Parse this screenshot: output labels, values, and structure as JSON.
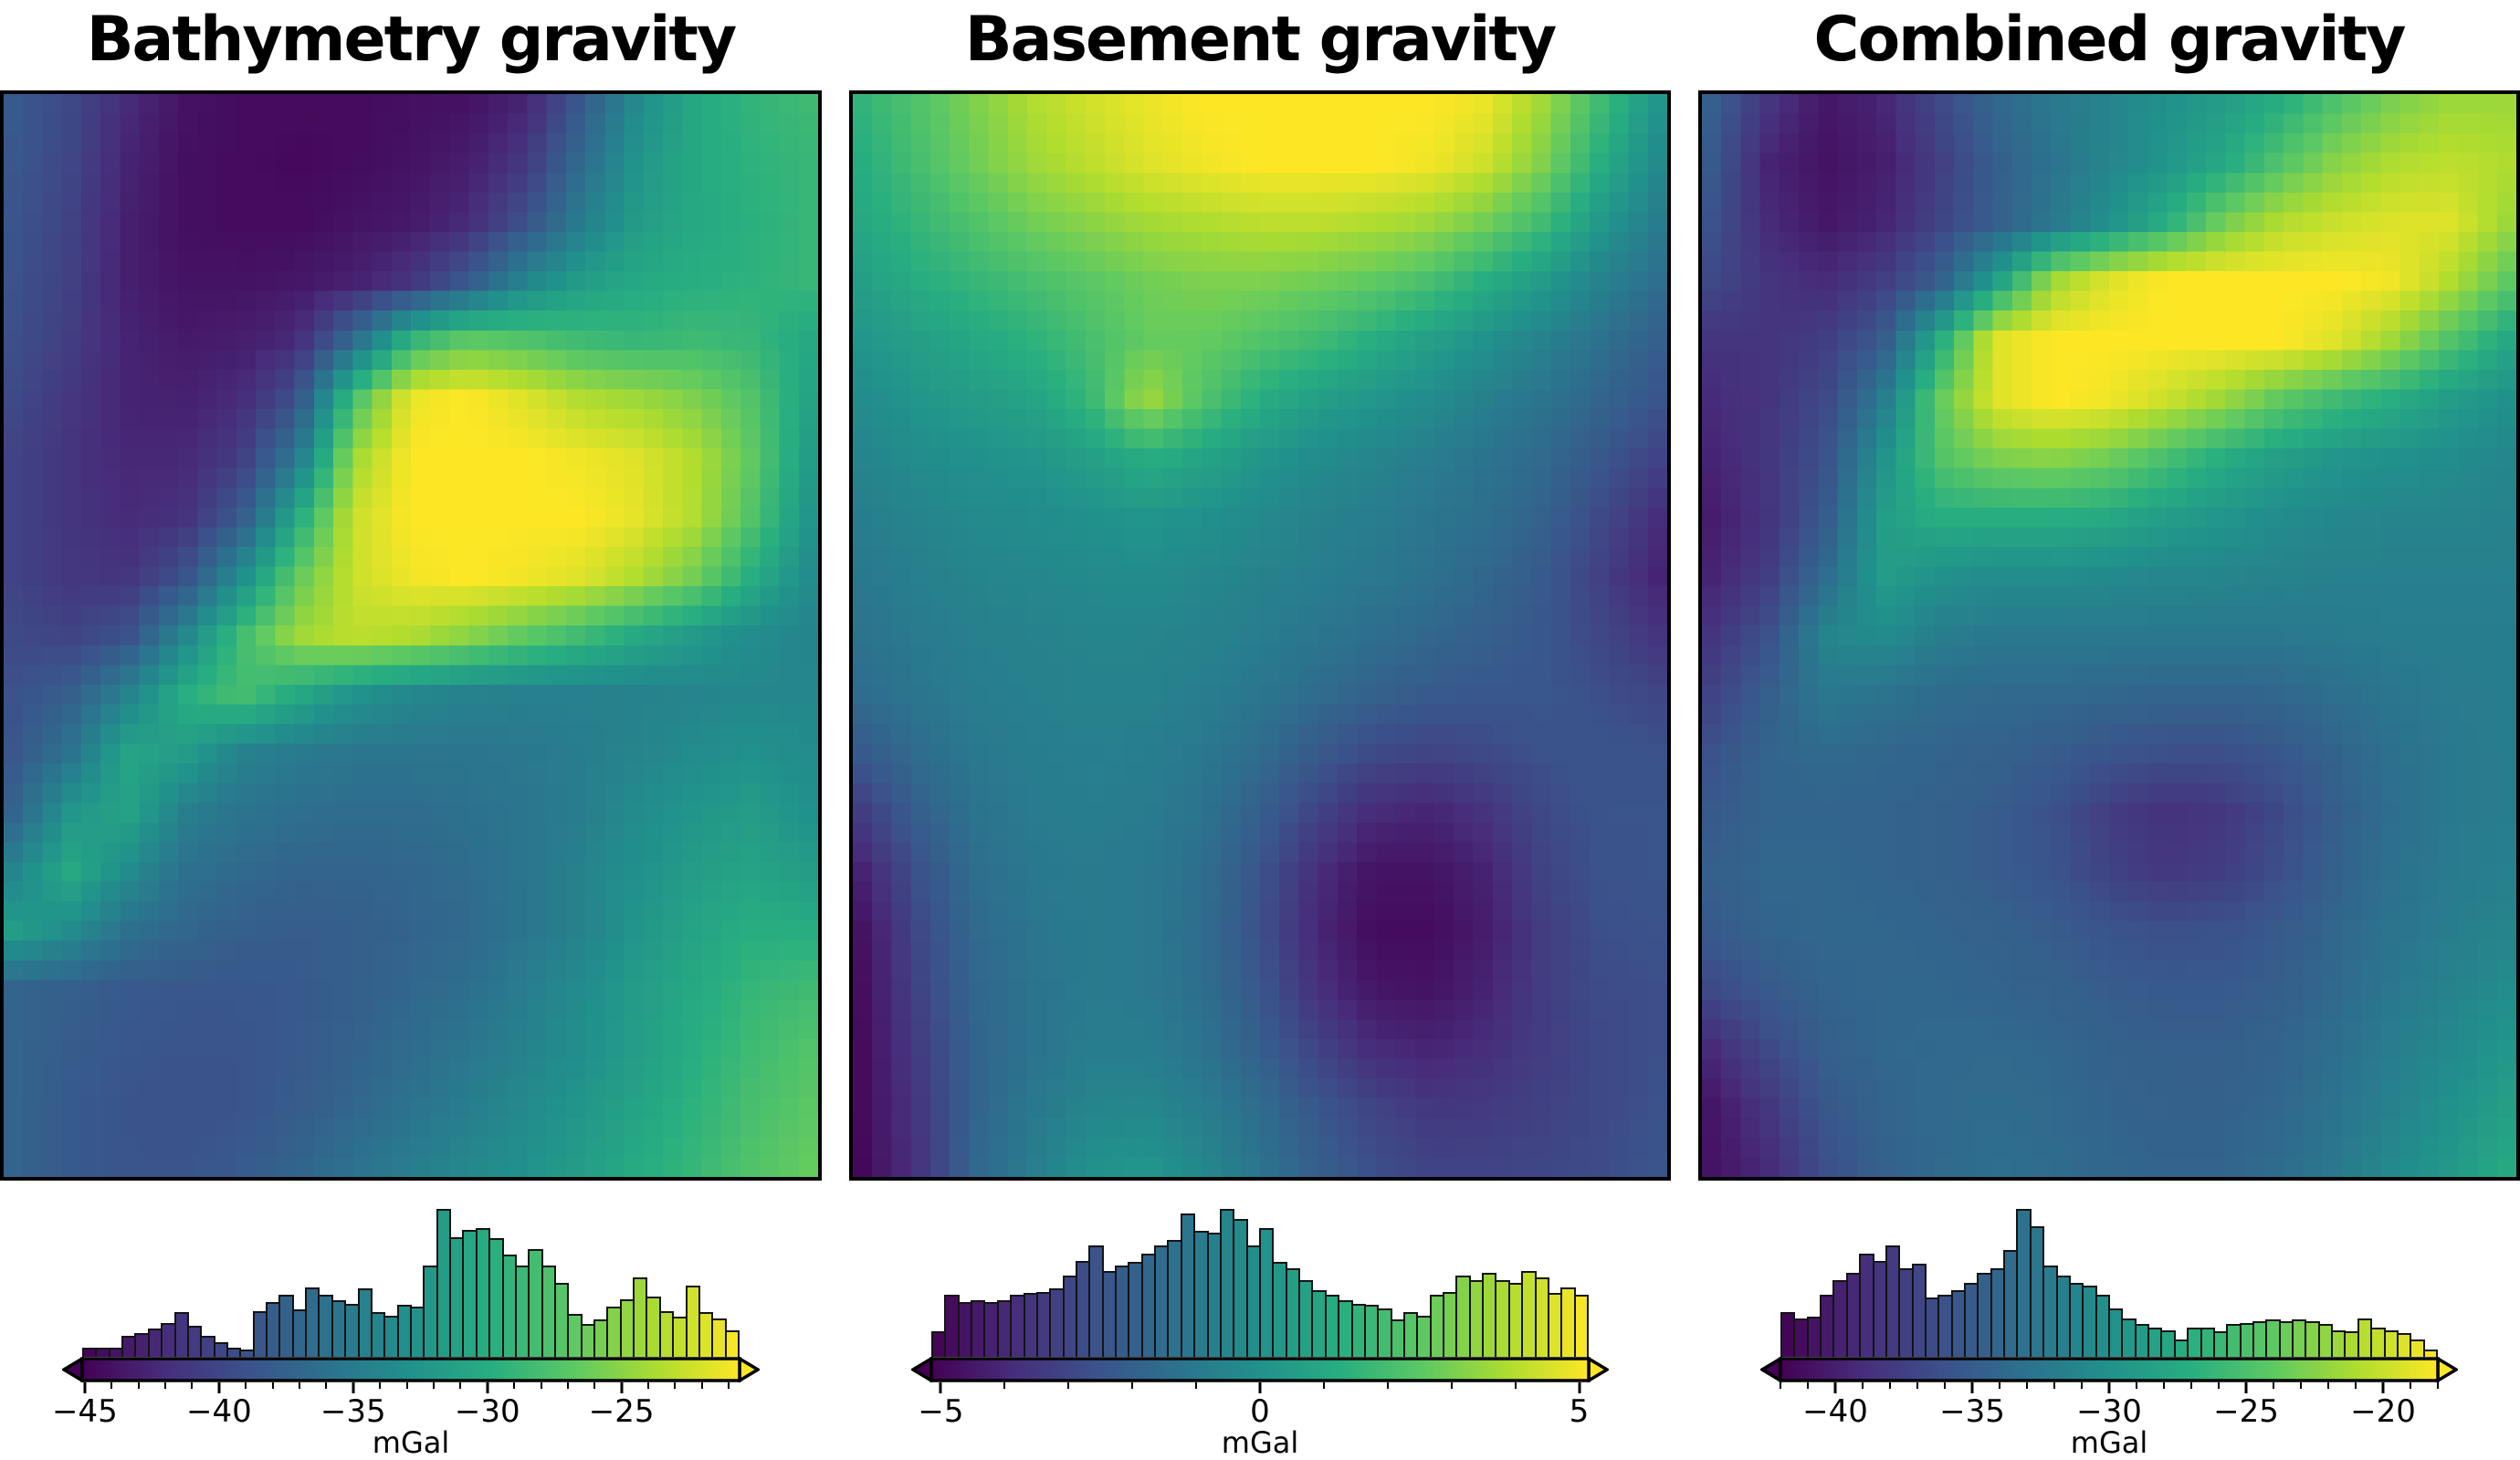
{
  "figure": {
    "background": "#ffffff",
    "description": "Three viridis heatmap panels of gravity grids, each with a colored histogram and a horizontal colorbar with arrow (extend) ends"
  },
  "colormap": {
    "name": "viridis",
    "stops": [
      "#440154",
      "#472d7b",
      "#3b528b",
      "#2c728e",
      "#21918c",
      "#28ae80",
      "#5ec962",
      "#addc30",
      "#fde725"
    ]
  },
  "style": {
    "bar_edge_color": "#141414",
    "spine_color": "#000000",
    "text_color": "#000000"
  },
  "chart_data": [
    {
      "type": "heatmap",
      "title": "Bathymetry gravity",
      "colorbar": {
        "label": "mGal",
        "min": -45.1,
        "max": -20.6,
        "major_ticks": [
          -45,
          -40,
          -35,
          -30,
          -25
        ],
        "major_tick_labels": [
          "−45",
          "−40",
          "−35",
          "−30",
          "−25"
        ],
        "minor_tick_step": 1,
        "extend": "both"
      },
      "histogram_normalized_heights": [
        0.06,
        0.06,
        0.06,
        0.14,
        0.16,
        0.19,
        0.23,
        0.3,
        0.21,
        0.14,
        0.1,
        0.06,
        0.05,
        0.31,
        0.37,
        0.42,
        0.32,
        0.47,
        0.42,
        0.38,
        0.36,
        0.46,
        0.3,
        0.28,
        0.35,
        0.34,
        0.62,
        1.0,
        0.81,
        0.86,
        0.87,
        0.8,
        0.69,
        0.62,
        0.73,
        0.62,
        0.5,
        0.29,
        0.22,
        0.25,
        0.34,
        0.39,
        0.54,
        0.41,
        0.31,
        0.27,
        0.48,
        0.3,
        0.26,
        0.18
      ],
      "grid_normalized": [
        [
          0.28,
          0.22,
          0.12,
          0.05,
          0.03,
          0.03,
          0.03,
          0.04,
          0.05,
          0.1,
          0.28,
          0.48,
          0.6,
          0.65,
          0.68
        ],
        [
          0.27,
          0.21,
          0.1,
          0.04,
          0.03,
          0.02,
          0.03,
          0.05,
          0.08,
          0.16,
          0.35,
          0.52,
          0.6,
          0.64,
          0.66
        ],
        [
          0.26,
          0.2,
          0.09,
          0.04,
          0.03,
          0.03,
          0.05,
          0.07,
          0.12,
          0.25,
          0.42,
          0.55,
          0.6,
          0.63,
          0.66
        ],
        [
          0.25,
          0.19,
          0.09,
          0.05,
          0.05,
          0.06,
          0.09,
          0.15,
          0.28,
          0.45,
          0.55,
          0.6,
          0.62,
          0.64,
          0.66
        ],
        [
          0.24,
          0.18,
          0.1,
          0.07,
          0.08,
          0.12,
          0.35,
          0.65,
          0.75,
          0.72,
          0.68,
          0.66,
          0.68,
          0.66,
          0.6
        ],
        [
          0.22,
          0.16,
          0.1,
          0.09,
          0.12,
          0.25,
          0.7,
          0.97,
          1.0,
          0.95,
          0.88,
          0.85,
          0.8,
          0.72,
          0.58
        ],
        [
          0.2,
          0.15,
          0.11,
          0.11,
          0.18,
          0.4,
          0.85,
          1.0,
          1.0,
          1.0,
          0.98,
          0.95,
          0.88,
          0.75,
          0.55
        ],
        [
          0.2,
          0.15,
          0.12,
          0.14,
          0.28,
          0.6,
          0.92,
          1.0,
          1.0,
          1.0,
          1.0,
          0.96,
          0.88,
          0.72,
          0.52
        ],
        [
          0.2,
          0.16,
          0.15,
          0.25,
          0.48,
          0.75,
          0.92,
          0.98,
          1.0,
          0.98,
          0.95,
          0.88,
          0.78,
          0.62,
          0.48
        ],
        [
          0.22,
          0.2,
          0.25,
          0.45,
          0.68,
          0.85,
          0.9,
          0.88,
          0.82,
          0.75,
          0.68,
          0.6,
          0.54,
          0.48,
          0.45
        ],
        [
          0.25,
          0.3,
          0.44,
          0.62,
          0.7,
          0.6,
          0.51,
          0.46,
          0.44,
          0.43,
          0.43,
          0.44,
          0.45,
          0.46,
          0.46
        ],
        [
          0.27,
          0.38,
          0.58,
          0.55,
          0.44,
          0.41,
          0.39,
          0.39,
          0.39,
          0.4,
          0.42,
          0.45,
          0.48,
          0.5,
          0.48
        ],
        [
          0.32,
          0.52,
          0.58,
          0.43,
          0.38,
          0.36,
          0.35,
          0.35,
          0.37,
          0.39,
          0.42,
          0.48,
          0.52,
          0.55,
          0.5
        ],
        [
          0.45,
          0.6,
          0.48,
          0.37,
          0.34,
          0.32,
          0.32,
          0.33,
          0.35,
          0.39,
          0.44,
          0.5,
          0.55,
          0.58,
          0.55
        ],
        [
          0.55,
          0.48,
          0.37,
          0.33,
          0.3,
          0.29,
          0.3,
          0.32,
          0.34,
          0.39,
          0.44,
          0.52,
          0.58,
          0.62,
          0.62
        ],
        [
          0.32,
          0.3,
          0.28,
          0.27,
          0.27,
          0.28,
          0.3,
          0.33,
          0.36,
          0.42,
          0.48,
          0.55,
          0.6,
          0.66,
          0.68
        ],
        [
          0.32,
          0.29,
          0.27,
          0.26,
          0.26,
          0.28,
          0.31,
          0.35,
          0.39,
          0.44,
          0.49,
          0.55,
          0.62,
          0.68,
          0.72
        ],
        [
          0.32,
          0.28,
          0.26,
          0.25,
          0.26,
          0.29,
          0.33,
          0.38,
          0.42,
          0.47,
          0.52,
          0.58,
          0.64,
          0.7,
          0.74
        ],
        [
          0.32,
          0.28,
          0.26,
          0.26,
          0.28,
          0.32,
          0.37,
          0.42,
          0.46,
          0.5,
          0.55,
          0.61,
          0.66,
          0.72,
          0.76
        ]
      ]
    },
    {
      "type": "heatmap",
      "title": "Basement gravity",
      "colorbar": {
        "label": "mGal",
        "min": -5.15,
        "max": 5.15,
        "major_ticks": [
          -5,
          0,
          5
        ],
        "major_tick_labels": [
          "−5",
          "0",
          "5"
        ],
        "minor_tick_step": 1,
        "extend": "both"
      },
      "histogram_normalized_heights": [
        0.17,
        0.42,
        0.37,
        0.38,
        0.37,
        0.38,
        0.42,
        0.43,
        0.44,
        0.46,
        0.55,
        0.65,
        0.75,
        0.58,
        0.62,
        0.64,
        0.7,
        0.75,
        0.79,
        0.97,
        0.85,
        0.84,
        1.0,
        0.93,
        0.75,
        0.87,
        0.64,
        0.6,
        0.52,
        0.45,
        0.42,
        0.38,
        0.36,
        0.35,
        0.33,
        0.25,
        0.3,
        0.28,
        0.42,
        0.44,
        0.55,
        0.52,
        0.57,
        0.52,
        0.5,
        0.58,
        0.54,
        0.43,
        0.47,
        0.42
      ],
      "grid_normalized": [
        [
          0.65,
          0.72,
          0.8,
          0.88,
          0.93,
          0.97,
          1.0,
          1.0,
          1.0,
          1.0,
          1.0,
          0.97,
          0.85,
          0.68,
          0.52
        ],
        [
          0.62,
          0.7,
          0.78,
          0.85,
          0.9,
          0.95,
          0.98,
          1.0,
          1.0,
          1.0,
          0.98,
          0.92,
          0.8,
          0.62,
          0.47
        ],
        [
          0.6,
          0.66,
          0.72,
          0.78,
          0.82,
          0.86,
          0.88,
          0.9,
          0.9,
          0.88,
          0.85,
          0.78,
          0.68,
          0.53,
          0.42
        ],
        [
          0.56,
          0.62,
          0.66,
          0.7,
          0.74,
          0.78,
          0.8,
          0.8,
          0.78,
          0.75,
          0.7,
          0.62,
          0.54,
          0.44,
          0.36
        ],
        [
          0.52,
          0.56,
          0.6,
          0.64,
          0.7,
          0.76,
          0.76,
          0.72,
          0.68,
          0.62,
          0.56,
          0.5,
          0.44,
          0.37,
          0.3
        ],
        [
          0.48,
          0.52,
          0.55,
          0.58,
          0.66,
          0.85,
          0.72,
          0.62,
          0.56,
          0.52,
          0.48,
          0.43,
          0.38,
          0.32,
          0.26
        ],
        [
          0.45,
          0.48,
          0.5,
          0.52,
          0.56,
          0.62,
          0.58,
          0.52,
          0.48,
          0.45,
          0.42,
          0.38,
          0.34,
          0.27,
          0.2
        ],
        [
          0.42,
          0.45,
          0.47,
          0.48,
          0.5,
          0.52,
          0.5,
          0.47,
          0.44,
          0.42,
          0.39,
          0.36,
          0.31,
          0.22,
          0.13
        ],
        [
          0.4,
          0.43,
          0.45,
          0.46,
          0.47,
          0.48,
          0.46,
          0.44,
          0.42,
          0.4,
          0.37,
          0.33,
          0.28,
          0.19,
          0.1
        ],
        [
          0.38,
          0.41,
          0.43,
          0.44,
          0.45,
          0.45,
          0.44,
          0.42,
          0.39,
          0.36,
          0.33,
          0.3,
          0.27,
          0.21,
          0.15
        ],
        [
          0.35,
          0.39,
          0.42,
          0.43,
          0.44,
          0.44,
          0.42,
          0.39,
          0.35,
          0.31,
          0.28,
          0.27,
          0.27,
          0.24,
          0.21
        ],
        [
          0.28,
          0.35,
          0.4,
          0.42,
          0.43,
          0.42,
          0.4,
          0.35,
          0.28,
          0.22,
          0.2,
          0.22,
          0.25,
          0.26,
          0.25
        ],
        [
          0.18,
          0.3,
          0.38,
          0.41,
          0.42,
          0.41,
          0.38,
          0.3,
          0.2,
          0.12,
          0.1,
          0.15,
          0.22,
          0.26,
          0.26
        ],
        [
          0.1,
          0.25,
          0.36,
          0.4,
          0.41,
          0.4,
          0.36,
          0.26,
          0.13,
          0.05,
          0.05,
          0.1,
          0.2,
          0.25,
          0.26
        ],
        [
          0.05,
          0.22,
          0.34,
          0.39,
          0.41,
          0.4,
          0.35,
          0.25,
          0.11,
          0.03,
          0.03,
          0.08,
          0.18,
          0.24,
          0.25
        ],
        [
          0.04,
          0.2,
          0.33,
          0.38,
          0.41,
          0.4,
          0.36,
          0.27,
          0.14,
          0.06,
          0.05,
          0.1,
          0.18,
          0.23,
          0.24
        ],
        [
          0.03,
          0.18,
          0.32,
          0.38,
          0.42,
          0.42,
          0.38,
          0.3,
          0.2,
          0.12,
          0.1,
          0.13,
          0.18,
          0.22,
          0.24
        ],
        [
          0.03,
          0.16,
          0.32,
          0.4,
          0.45,
          0.46,
          0.42,
          0.35,
          0.27,
          0.2,
          0.16,
          0.17,
          0.19,
          0.22,
          0.25
        ],
        [
          0.02,
          0.15,
          0.33,
          0.42,
          0.5,
          0.52,
          0.46,
          0.38,
          0.3,
          0.24,
          0.2,
          0.2,
          0.21,
          0.23,
          0.26
        ]
      ]
    },
    {
      "type": "heatmap",
      "title": "Combined gravity",
      "colorbar": {
        "label": "mGal",
        "min": -42.0,
        "max": -18.0,
        "major_ticks": [
          -40,
          -35,
          -30,
          -25,
          -20
        ],
        "major_tick_labels": [
          "−40",
          "−35",
          "−30",
          "−25",
          "−20"
        ],
        "minor_tick_step": 1,
        "extend": "both"
      },
      "histogram_normalized_heights": [
        0.3,
        0.26,
        0.27,
        0.42,
        0.52,
        0.57,
        0.7,
        0.65,
        0.75,
        0.6,
        0.63,
        0.4,
        0.42,
        0.45,
        0.5,
        0.57,
        0.6,
        0.72,
        1.0,
        0.88,
        0.62,
        0.55,
        0.5,
        0.48,
        0.42,
        0.33,
        0.26,
        0.22,
        0.2,
        0.18,
        0.12,
        0.2,
        0.2,
        0.17,
        0.22,
        0.23,
        0.24,
        0.25,
        0.24,
        0.25,
        0.24,
        0.22,
        0.18,
        0.17,
        0.26,
        0.2,
        0.18,
        0.16,
        0.12,
        0.05
      ],
      "grid_normalized": [
        [
          0.3,
          0.15,
          0.06,
          0.1,
          0.22,
          0.33,
          0.4,
          0.45,
          0.5,
          0.55,
          0.62,
          0.72,
          0.8,
          0.85,
          0.85
        ],
        [
          0.28,
          0.1,
          0.05,
          0.08,
          0.18,
          0.3,
          0.38,
          0.45,
          0.52,
          0.6,
          0.72,
          0.82,
          0.88,
          0.9,
          0.88
        ],
        [
          0.25,
          0.12,
          0.06,
          0.1,
          0.2,
          0.3,
          0.4,
          0.5,
          0.62,
          0.78,
          0.88,
          0.92,
          0.95,
          0.95,
          0.85
        ],
        [
          0.22,
          0.15,
          0.12,
          0.18,
          0.3,
          0.55,
          0.85,
          0.95,
          1.0,
          1.0,
          1.0,
          1.0,
          0.98,
          0.88,
          0.75
        ],
        [
          0.15,
          0.15,
          0.18,
          0.28,
          0.6,
          0.95,
          1.0,
          1.0,
          1.0,
          1.0,
          1.0,
          0.95,
          0.85,
          0.72,
          0.6
        ],
        [
          0.12,
          0.15,
          0.22,
          0.4,
          0.75,
          0.95,
          1.0,
          0.98,
          0.92,
          0.85,
          0.75,
          0.68,
          0.62,
          0.55,
          0.5
        ],
        [
          0.1,
          0.16,
          0.25,
          0.5,
          0.72,
          0.8,
          0.82,
          0.78,
          0.7,
          0.62,
          0.56,
          0.52,
          0.5,
          0.48,
          0.46
        ],
        [
          0.08,
          0.15,
          0.28,
          0.55,
          0.62,
          0.62,
          0.62,
          0.6,
          0.55,
          0.52,
          0.48,
          0.46,
          0.45,
          0.45,
          0.44
        ],
        [
          0.1,
          0.18,
          0.35,
          0.55,
          0.5,
          0.48,
          0.48,
          0.47,
          0.46,
          0.45,
          0.44,
          0.43,
          0.43,
          0.43,
          0.43
        ],
        [
          0.15,
          0.25,
          0.45,
          0.48,
          0.42,
          0.4,
          0.4,
          0.4,
          0.4,
          0.4,
          0.4,
          0.41,
          0.42,
          0.42,
          0.42
        ],
        [
          0.2,
          0.3,
          0.4,
          0.38,
          0.35,
          0.34,
          0.34,
          0.33,
          0.32,
          0.32,
          0.33,
          0.36,
          0.39,
          0.41,
          0.42
        ],
        [
          0.25,
          0.32,
          0.34,
          0.33,
          0.32,
          0.31,
          0.29,
          0.26,
          0.24,
          0.24,
          0.27,
          0.32,
          0.37,
          0.4,
          0.42
        ],
        [
          0.28,
          0.32,
          0.32,
          0.32,
          0.31,
          0.29,
          0.25,
          0.18,
          0.14,
          0.16,
          0.22,
          0.3,
          0.36,
          0.4,
          0.42
        ],
        [
          0.3,
          0.33,
          0.33,
          0.32,
          0.31,
          0.29,
          0.26,
          0.2,
          0.16,
          0.18,
          0.24,
          0.31,
          0.37,
          0.41,
          0.43
        ],
        [
          0.28,
          0.32,
          0.33,
          0.33,
          0.32,
          0.31,
          0.29,
          0.26,
          0.24,
          0.25,
          0.28,
          0.33,
          0.38,
          0.42,
          0.45
        ],
        [
          0.22,
          0.28,
          0.32,
          0.33,
          0.33,
          0.32,
          0.31,
          0.29,
          0.28,
          0.28,
          0.3,
          0.34,
          0.4,
          0.44,
          0.48
        ],
        [
          0.12,
          0.22,
          0.3,
          0.33,
          0.34,
          0.34,
          0.33,
          0.31,
          0.3,
          0.3,
          0.32,
          0.36,
          0.42,
          0.47,
          0.52
        ],
        [
          0.06,
          0.16,
          0.27,
          0.32,
          0.34,
          0.35,
          0.34,
          0.32,
          0.31,
          0.31,
          0.33,
          0.38,
          0.44,
          0.5,
          0.56
        ],
        [
          0.05,
          0.12,
          0.24,
          0.31,
          0.34,
          0.36,
          0.35,
          0.33,
          0.32,
          0.32,
          0.35,
          0.4,
          0.47,
          0.53,
          0.6
        ]
      ]
    }
  ]
}
